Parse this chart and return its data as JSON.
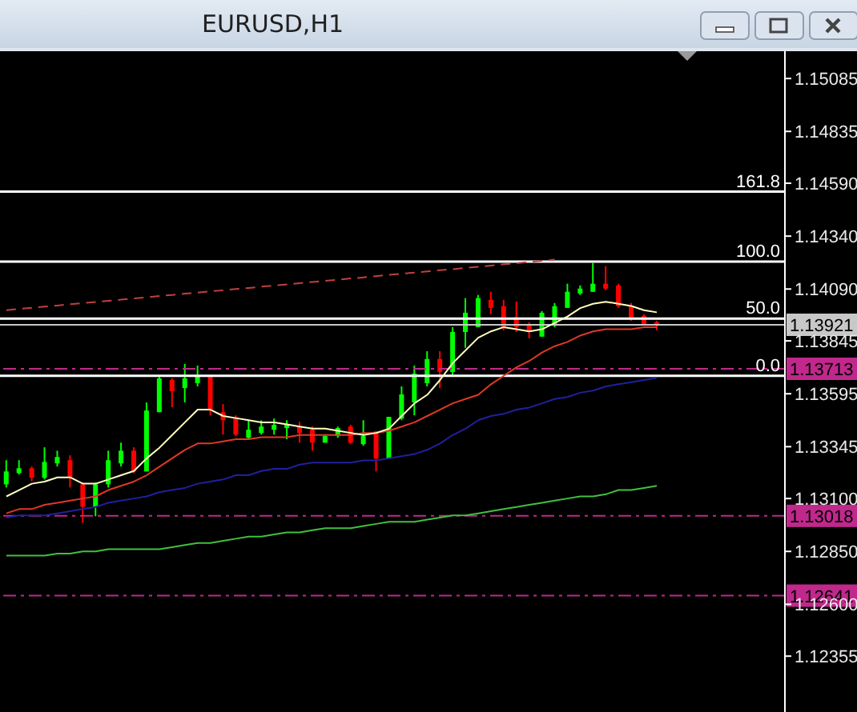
{
  "chart_data": {
    "type": "candlestick",
    "title": "EURUSD,H1",
    "categories": [
      null,
      null,
      null,
      null,
      null,
      null,
      null,
      null,
      null,
      null,
      null,
      null,
      null,
      null,
      null,
      null,
      null,
      null,
      null,
      null,
      null,
      null,
      null,
      null,
      null,
      null,
      null,
      null,
      null,
      null,
      null,
      null,
      null,
      null,
      null,
      null,
      null,
      null,
      null,
      null,
      null,
      null,
      null,
      null,
      null,
      null,
      null,
      null,
      null,
      null,
      null,
      null
    ],
    "ohlc": [
      [
        1.13167,
        1.13281,
        1.13152,
        1.13228
      ],
      [
        1.1322,
        1.13281,
        1.13213,
        1.13243
      ],
      [
        1.13243,
        1.13251,
        1.13182,
        1.13198
      ],
      [
        1.13198,
        1.13342,
        1.1319,
        1.13273
      ],
      [
        1.13266,
        1.13326,
        1.13251,
        1.13296
      ],
      [
        1.13281,
        1.13304,
        1.13152,
        1.13198
      ],
      [
        1.13167,
        1.13175,
        1.12985,
        1.13061
      ],
      [
        1.13061,
        1.13175,
        1.13016,
        1.13167
      ],
      [
        1.13167,
        1.13326,
        1.13152,
        1.13281
      ],
      [
        1.13266,
        1.13364,
        1.13251,
        1.13326
      ],
      [
        1.13326,
        1.13342,
        1.1322,
        1.13228
      ],
      [
        1.13228,
        1.13554,
        1.13228,
        1.13516
      ],
      [
        1.13508,
        1.13675,
        1.13508,
        1.13668
      ],
      [
        1.1366,
        1.13668,
        1.13531,
        1.13607
      ],
      [
        1.13622,
        1.13736,
        1.13554,
        1.13668
      ],
      [
        1.13645,
        1.13728,
        1.1363,
        1.13683
      ],
      [
        1.13675,
        1.13675,
        1.13493,
        1.13516
      ],
      [
        1.13508,
        1.13546,
        1.13402,
        1.1347
      ],
      [
        1.13478,
        1.13493,
        1.13395,
        1.13402
      ],
      [
        1.13387,
        1.1347,
        1.1338,
        1.13425
      ],
      [
        1.1341,
        1.1347,
        1.13402,
        1.1344
      ],
      [
        1.13425,
        1.13478,
        1.13402,
        1.13448
      ],
      [
        1.13433,
        1.1347,
        1.1338,
        1.13448
      ],
      [
        1.1344,
        1.13463,
        1.13364,
        1.1341
      ],
      [
        1.13425,
        1.1344,
        1.13326,
        1.13364
      ],
      [
        1.13364,
        1.13402,
        1.13364,
        1.13395
      ],
      [
        1.13395,
        1.1344,
        1.13387,
        1.13433
      ],
      [
        1.1344,
        1.13448,
        1.13357,
        1.13364
      ],
      [
        1.13357,
        1.1347,
        1.13349,
        1.13395
      ],
      [
        1.13417,
        1.13417,
        1.13228,
        1.13289
      ],
      [
        1.13289,
        1.13486,
        1.13289,
        1.13486
      ],
      [
        1.13478,
        1.1363,
        1.1347,
        1.13592
      ],
      [
        1.13554,
        1.13728,
        1.13493,
        1.1369
      ],
      [
        1.13645,
        1.13796,
        1.1363,
        1.13759
      ],
      [
        1.13759,
        1.13796,
        1.13622,
        1.13698
      ],
      [
        1.13698,
        1.1391,
        1.13683,
        1.13887
      ],
      [
        1.13887,
        1.14047,
        1.13812,
        1.13978
      ],
      [
        1.1391,
        1.14062,
        1.1391,
        1.14047
      ],
      [
        1.14039,
        1.14077,
        1.13971,
        1.14001
      ],
      [
        1.14009,
        1.14039,
        1.13895,
        1.1391
      ],
      [
        1.13956,
        1.14031,
        1.13887,
        1.1391
      ],
      [
        1.13925,
        1.13933,
        1.13857,
        1.13887
      ],
      [
        1.13865,
        1.13986,
        1.13865,
        1.13978
      ],
      [
        1.13925,
        1.14024,
        1.1391,
        1.14009
      ],
      [
        1.14001,
        1.14115,
        1.14001,
        1.14077
      ],
      [
        1.14069,
        1.14107,
        1.14062,
        1.14092
      ],
      [
        1.14077,
        1.14213,
        1.14077,
        1.14115
      ],
      [
        1.14115,
        1.14198,
        1.14084,
        1.14092
      ],
      [
        1.14107,
        1.14115,
        1.14001,
        1.14009
      ],
      [
        1.14009,
        1.14024,
        1.1394,
        1.13956
      ],
      [
        1.13963,
        1.13971,
        1.13925,
        1.13925
      ],
      [
        1.13933,
        1.1394,
        1.13895,
        1.13921
      ]
    ],
    "colors": [
      "#00ff00",
      "#00ff00",
      "#ff0000",
      "#00ff00",
      "#00ff00",
      "#ff0000",
      "#ff0000",
      "#00ff00",
      "#00ff00",
      "#00ff00",
      "#ff0000",
      "#00ff00",
      "#00ff00",
      "#ff0000",
      "#00ff00",
      "#00ff00",
      "#ff0000",
      "#ff0000",
      "#ff0000",
      "#00ff00",
      "#00ff00",
      "#00ff00",
      "#00ff00",
      "#ff0000",
      "#ff0000",
      "#00ff00",
      "#00ff00",
      "#ff0000",
      "#00ff00",
      "#ff0000",
      "#00ff00",
      "#00ff00",
      "#00ff00",
      "#00ff00",
      "#ff0000",
      "#00ff00",
      "#00ff00",
      "#00ff00",
      "#ff0000",
      "#ff0000",
      "#ff0000",
      "#ff0000",
      "#00ff00",
      "#00ff00",
      "#00ff00",
      "#00ff00",
      "#00ff00",
      "#ff0000",
      "#ff0000",
      "#ff0000",
      "#ff0000",
      "#ff0000"
    ],
    "series": [
      {
        "type": "line",
        "color": "#40c040",
        "values": [
          1.1283,
          1.1283,
          1.1283,
          1.1283,
          1.1284,
          1.1284,
          1.1285,
          1.1285,
          1.1286,
          1.1286,
          1.1286,
          1.1286,
          1.1286,
          1.1287,
          1.1288,
          1.1289,
          1.1289,
          1.129,
          1.1291,
          1.1292,
          1.1292,
          1.1293,
          1.1294,
          1.1294,
          1.1295,
          1.1296,
          1.1296,
          1.1296,
          1.1297,
          1.1298,
          1.1299,
          1.1299,
          1.1299,
          1.13,
          1.1301,
          1.1302,
          1.1302,
          1.1303,
          1.1304,
          1.1305,
          1.1306,
          1.1307,
          1.1308,
          1.1309,
          1.131,
          1.1311,
          1.1311,
          1.1312,
          1.1314,
          1.1314,
          1.1315,
          1.1316
        ]
      },
      {
        "type": "line",
        "color": "#2020a0",
        "values": [
          1.1301,
          1.1302,
          1.1302,
          1.1302,
          1.1303,
          1.1304,
          1.1305,
          1.1306,
          1.1308,
          1.1309,
          1.131,
          1.1311,
          1.1313,
          1.1314,
          1.1315,
          1.1317,
          1.1318,
          1.1319,
          1.1321,
          1.1321,
          1.1323,
          1.1324,
          1.1324,
          1.1326,
          1.1327,
          1.1327,
          1.1327,
          1.1327,
          1.1328,
          1.1328,
          1.1329,
          1.133,
          1.1331,
          1.1333,
          1.1336,
          1.134,
          1.1343,
          1.1347,
          1.1349,
          1.135,
          1.1352,
          1.1353,
          1.1355,
          1.1357,
          1.1358,
          1.136,
          1.1361,
          1.1363,
          1.1364,
          1.1365,
          1.1366,
          1.1367
        ]
      },
      {
        "type": "line",
        "color": "#e03828",
        "values": [
          1.1303,
          1.1305,
          1.1305,
          1.1307,
          1.1308,
          1.1309,
          1.131,
          1.1311,
          1.1314,
          1.1316,
          1.1318,
          1.1321,
          1.1325,
          1.1329,
          1.1333,
          1.1336,
          1.1336,
          1.1337,
          1.1338,
          1.1338,
          1.1339,
          1.1339,
          1.1339,
          1.134,
          1.134,
          1.134,
          1.134,
          1.134,
          1.1341,
          1.1341,
          1.1342,
          1.1344,
          1.1346,
          1.1349,
          1.1352,
          1.1355,
          1.1357,
          1.1359,
          1.1364,
          1.1368,
          1.1372,
          1.1375,
          1.1379,
          1.1382,
          1.1384,
          1.1387,
          1.1389,
          1.139,
          1.139,
          1.139,
          1.1391,
          1.1391
        ]
      },
      {
        "type": "line",
        "color": "#ffffc0",
        "values": [
          1.1311,
          1.1314,
          1.1317,
          1.1318,
          1.132,
          1.132,
          1.1317,
          1.1317,
          1.1319,
          1.1321,
          1.1323,
          1.1329,
          1.1334,
          1.134,
          1.1346,
          1.1352,
          1.1352,
          1.1349,
          1.1348,
          1.1347,
          1.1346,
          1.1346,
          1.1345,
          1.1344,
          1.1343,
          1.1343,
          1.1342,
          1.1341,
          1.134,
          1.1341,
          1.1343,
          1.1349,
          1.1355,
          1.1359,
          1.1366,
          1.1374,
          1.138,
          1.1386,
          1.1389,
          1.1391,
          1.139,
          1.1389,
          1.139,
          1.1393,
          1.1396,
          1.14,
          1.1402,
          1.1403,
          1.1402,
          1.1401,
          1.1399,
          1.1398
        ]
      },
      {
        "type": "line",
        "color": "#c04040",
        "line_style": "dashed",
        "values": [
          1.1399,
          1.13996,
          1.14001,
          1.14007,
          1.14012,
          1.14018,
          1.14023,
          1.14029,
          1.14034,
          1.1404,
          1.14046,
          1.14051,
          1.14057,
          1.14062,
          1.14068,
          1.14073,
          1.14079,
          1.14084,
          1.1409,
          1.14095,
          1.14101,
          1.14107,
          1.14112,
          1.14118,
          1.14123,
          1.14129,
          1.14134,
          1.1414,
          1.14145,
          1.14151,
          1.14157,
          1.14162,
          1.14168,
          1.14173,
          1.14179,
          1.14184,
          1.1419,
          1.14195,
          1.14201,
          1.14207,
          1.14212,
          1.14218,
          1.14223,
          1.14229,
          null,
          null,
          null,
          null,
          null,
          null,
          null,
          null
        ]
      }
    ],
    "ref_lines": [
      {
        "axis": "y",
        "value": 1.1455,
        "color": "#ffffff"
      },
      {
        "axis": "y",
        "value": 1.1422,
        "color": "#ffffff"
      },
      {
        "axis": "y",
        "value": 1.1395,
        "color": "#ffffff"
      },
      {
        "axis": "y",
        "value": 1.1368,
        "color": "#ffffff"
      },
      {
        "axis": "y",
        "value": 1.13921,
        "label": "1.13921",
        "color": "#c8c8c8",
        "line_style": "solid"
      },
      {
        "axis": "y",
        "value": 1.13713,
        "label": "1.13713",
        "color": "#c0288c",
        "line_style": "dashed"
      },
      {
        "axis": "y",
        "value": 1.13018,
        "label": "1.13018",
        "color": "#c0288c",
        "line_style": "dashed"
      },
      {
        "axis": "y",
        "value": 1.12641,
        "label": "1.12641",
        "color": "#c0288c",
        "line_style": "dashed"
      }
    ],
    "annotations": [
      {
        "text": "161.8",
        "y": 1.1455
      },
      {
        "text": "100.0",
        "y": 1.1422
      },
      {
        "text": "50.0",
        "y": 1.1395
      },
      {
        "text": "0.0",
        "y": 1.1368
      }
    ],
    "ylim": [
      1.12091,
      1.15214
    ],
    "yticks": [
      1.15085,
      1.14835,
      {
        "value": 1.1459,
        "label": "1.14590"
      },
      {
        "value": 1.1434,
        "label": "1.14340"
      },
      {
        "value": 1.1409,
        "label": "1.14090"
      },
      1.13845,
      1.13595,
      1.13345,
      {
        "value": 1.131,
        "label": "1.13100"
      },
      {
        "value": 1.1285,
        "label": "1.12850"
      },
      {
        "value": 1.126,
        "label": "1.12600"
      },
      1.12355
    ],
    "tick_labels": "y"
  }
}
